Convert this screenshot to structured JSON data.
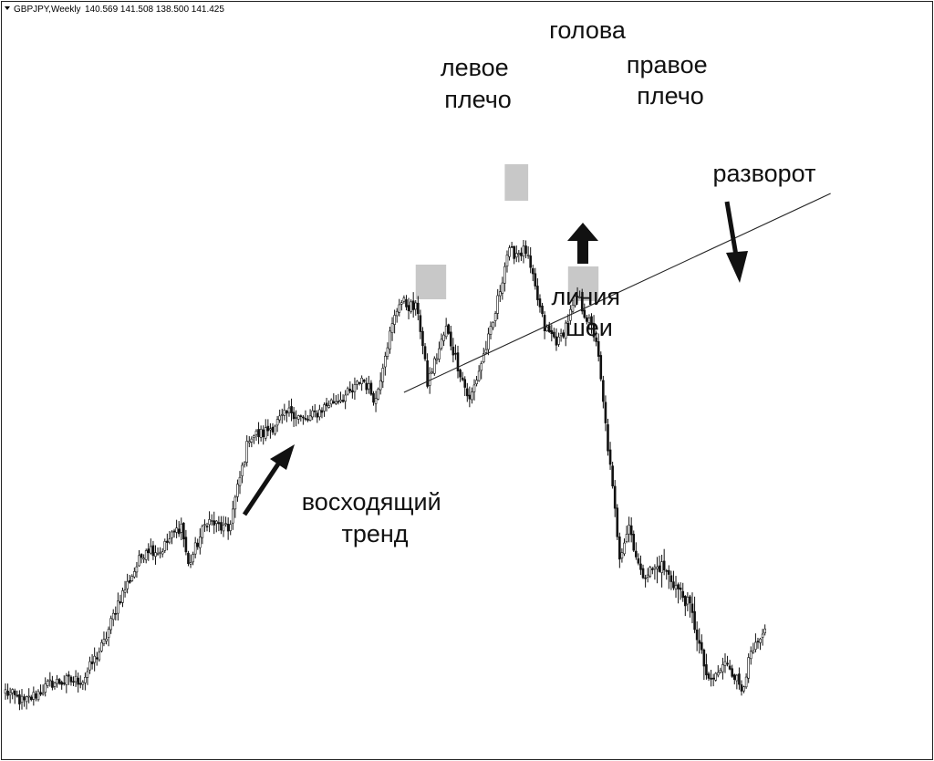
{
  "header": {
    "symbol": "GBPJPY,Weekly",
    "ohlc": "140.569 141.508 138.500 141.425"
  },
  "chart_data": {
    "type": "candlestick",
    "title": "",
    "xlabel": "",
    "ylabel": "",
    "grid": false,
    "legend": "none",
    "x": [],
    "waypoints": [
      {
        "i": 0,
        "p": 22
      },
      {
        "i": 8,
        "p": 10
      },
      {
        "i": 20,
        "p": 32
      },
      {
        "i": 33,
        "p": 35
      },
      {
        "i": 42,
        "p": 75
      },
      {
        "i": 48,
        "p": 120
      },
      {
        "i": 60,
        "p": 180
      },
      {
        "i": 66,
        "p": 176
      },
      {
        "i": 75,
        "p": 205
      },
      {
        "i": 78,
        "p": 160
      },
      {
        "i": 86,
        "p": 210
      },
      {
        "i": 95,
        "p": 198
      },
      {
        "i": 104,
        "p": 302
      },
      {
        "i": 110,
        "p": 305
      },
      {
        "i": 122,
        "p": 330
      },
      {
        "i": 128,
        "p": 318
      },
      {
        "i": 138,
        "p": 338
      },
      {
        "i": 148,
        "p": 350
      },
      {
        "i": 152,
        "p": 366
      },
      {
        "i": 158,
        "p": 342
      },
      {
        "i": 162,
        "p": 395
      },
      {
        "i": 168,
        "p": 450
      },
      {
        "i": 176,
        "p": 440
      },
      {
        "i": 180,
        "p": 360
      },
      {
        "i": 188,
        "p": 420
      },
      {
        "i": 198,
        "p": 340
      },
      {
        "i": 208,
        "p": 425
      },
      {
        "i": 214,
        "p": 502
      },
      {
        "i": 222,
        "p": 505
      },
      {
        "i": 230,
        "p": 420
      },
      {
        "i": 236,
        "p": 405
      },
      {
        "i": 244,
        "p": 455
      },
      {
        "i": 252,
        "p": 408
      },
      {
        "i": 262,
        "p": 172
      },
      {
        "i": 266,
        "p": 205
      },
      {
        "i": 271,
        "p": 150
      },
      {
        "i": 280,
        "p": 160
      },
      {
        "i": 292,
        "p": 115
      },
      {
        "i": 300,
        "p": 30
      },
      {
        "i": 308,
        "p": 55
      },
      {
        "i": 314,
        "p": 25
      },
      {
        "i": 318,
        "p": 62
      },
      {
        "i": 324,
        "p": 84
      }
    ],
    "necklines": [
      {
        "from": {
          "i": 170,
          "p": 350
        },
        "to": {
          "i": 352,
          "p": 568
        }
      }
    ],
    "highlights": [
      {
        "name": "левое плечо",
        "i0": 175,
        "i1": 188,
        "p0": 452,
        "p1": 490
      },
      {
        "name": "голова",
        "i0": 213,
        "i1": 223,
        "p0": 560,
        "p1": 600
      },
      {
        "name": "правое плечо",
        "i0": 240,
        "i1": 253,
        "p0": 450,
        "p1": 488
      }
    ],
    "annotations": [
      {
        "id": "left_shoulder",
        "lines": [
          "левое",
          "плечо"
        ]
      },
      {
        "id": "head",
        "lines": [
          "голова"
        ]
      },
      {
        "id": "right_shoulder",
        "lines": [
          "правое",
          "плечо"
        ]
      },
      {
        "id": "reversal",
        "lines": [
          "разворот"
        ]
      },
      {
        "id": "neckline",
        "lines": [
          "линия",
          "шеи"
        ]
      },
      {
        "id": "uptrend",
        "lines": [
          "восходящий",
          "тренд"
        ]
      }
    ]
  }
}
